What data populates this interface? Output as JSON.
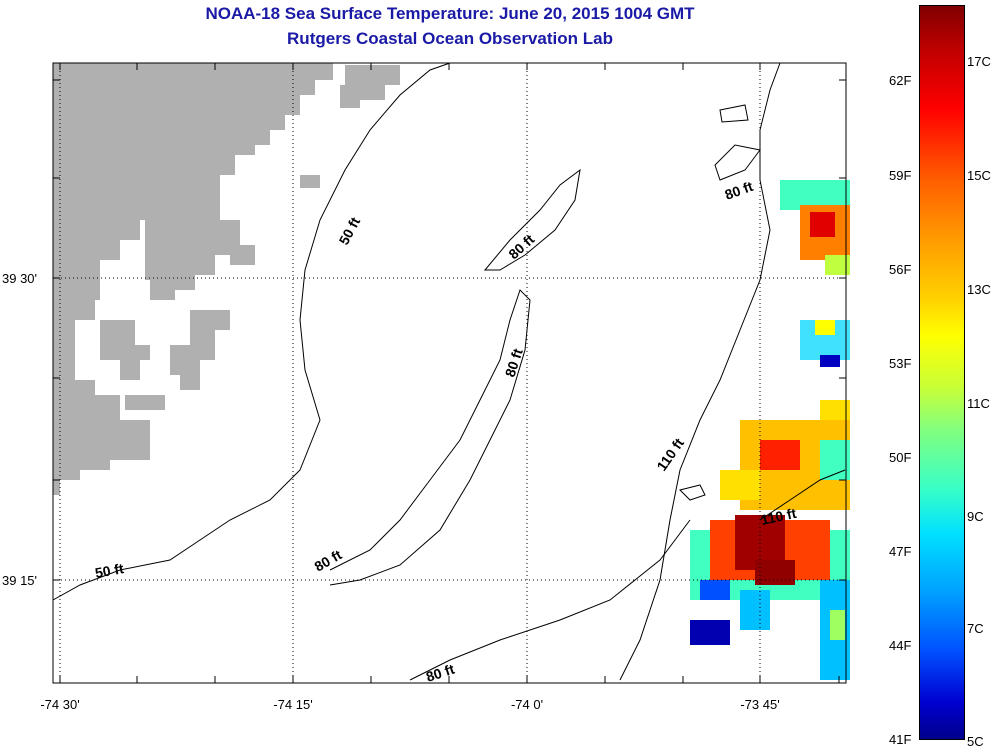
{
  "title": {
    "line1": "NOAA-18 Sea Surface Temperature:  June 20, 2015 1004 GMT",
    "line2": "Rutgers Coastal Ocean Observation Lab"
  },
  "axes": {
    "lat_labels": [
      "39 30'",
      "39 15'"
    ],
    "lon_labels": [
      "-74 30'",
      "-74 15'",
      "-74 0'",
      "-73 45'"
    ]
  },
  "contour_labels": [
    "50 ft",
    "80 ft",
    "80 ft",
    "80 ft",
    "110 ft",
    "110 ft",
    "80 ft",
    "80 ft",
    "50 ft"
  ],
  "colorbar": {
    "fahrenheit": [
      "62F",
      "59F",
      "56F",
      "53F",
      "50F",
      "47F",
      "44F",
      "41F"
    ],
    "celsius": [
      "17C",
      "15C",
      "13C",
      "11C",
      "9C",
      "7C",
      "5C"
    ]
  },
  "colors": {
    "title": "#1a1aa6",
    "land": "#b0b0b0",
    "contour": "#000000"
  }
}
